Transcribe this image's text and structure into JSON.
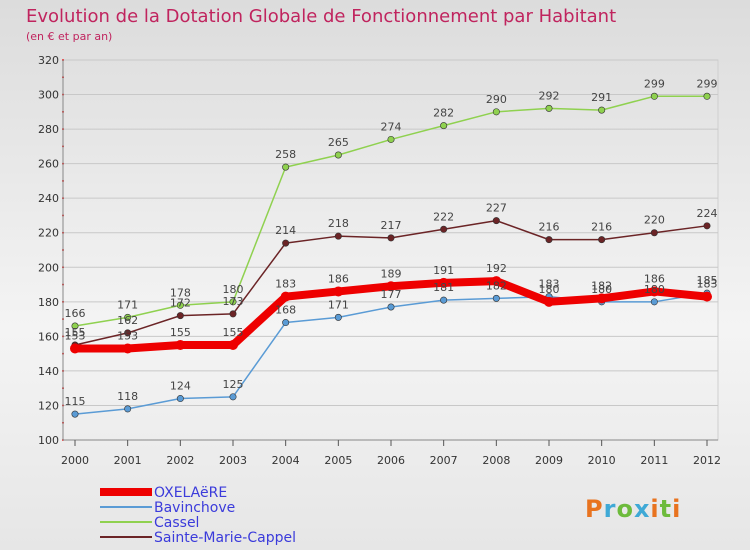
{
  "chart_data": {
    "type": "line",
    "title": "Evolution de la Dotation Globale de Fonctionnement par Habitant",
    "subtitle": "(en € et par an)",
    "x": [
      "2000",
      "2001",
      "2002",
      "2003",
      "2004",
      "2005",
      "2006",
      "2007",
      "2008",
      "2009",
      "2010",
      "2011",
      "2012"
    ],
    "ylim": [
      100,
      320
    ],
    "yticks": [
      "100",
      "120",
      "140",
      "160",
      "180",
      "200",
      "220",
      "240",
      "260",
      "280",
      "300",
      "320"
    ],
    "grid": "horizontal",
    "legend_position": "bottom-left",
    "series": [
      {
        "name": "Cassel",
        "color": "#8fd14f",
        "values": [
          166,
          171,
          178,
          180,
          258,
          265,
          274,
          282,
          290,
          292,
          291,
          299,
          299
        ]
      },
      {
        "name": "Sainte-Marie-Cappel",
        "color": "#6b2426",
        "values": [
          155,
          162,
          172,
          173,
          214,
          218,
          217,
          222,
          227,
          216,
          216,
          220,
          224
        ]
      },
      {
        "name": "Bavinchove",
        "color": "#5a9bd5",
        "values": [
          115,
          118,
          124,
          125,
          168,
          171,
          177,
          181,
          182,
          183,
          180,
          180,
          185
        ]
      },
      {
        "name": "OXELAëRE",
        "color": "#ee0000",
        "values": [
          153,
          153,
          155,
          155,
          183,
          186,
          189,
          191,
          192,
          180,
          182,
          186,
          183
        ]
      }
    ],
    "legend": [
      "OXELAëRE",
      "Bavinchove",
      "Cassel",
      "Sainte-Marie-Cappel"
    ]
  },
  "brand": {
    "logo_text": "Proxiti"
  }
}
